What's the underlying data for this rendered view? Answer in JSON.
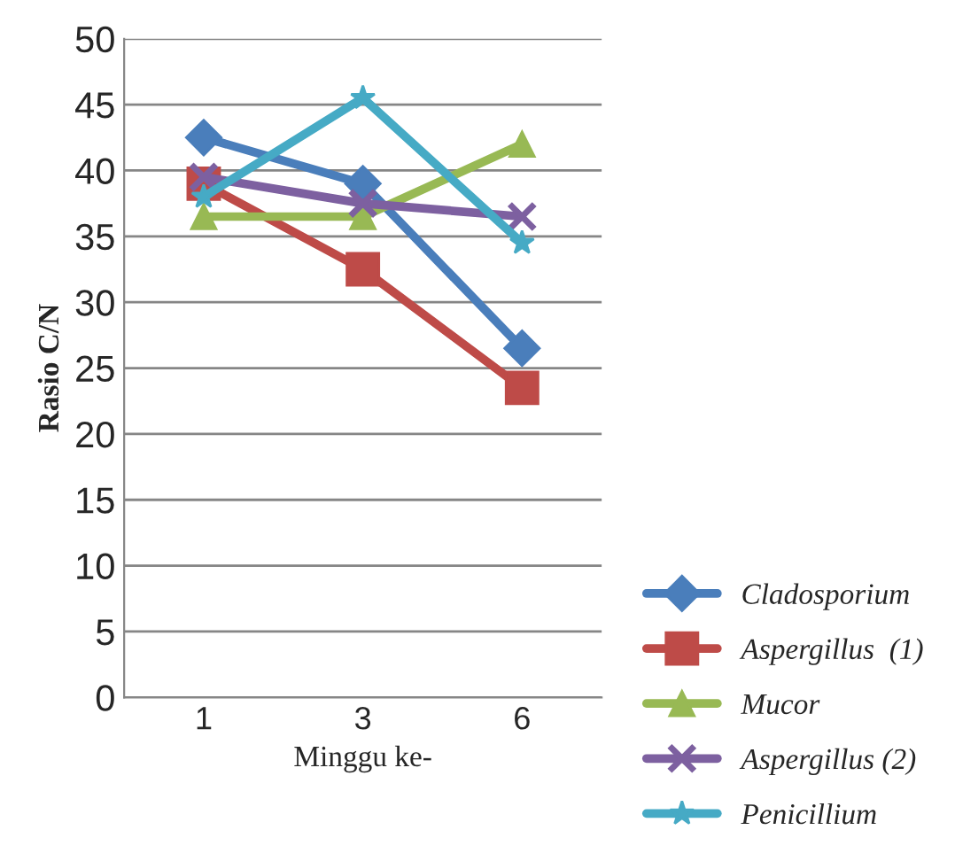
{
  "chart_data": {
    "type": "line",
    "xlabel": "Minggu ke-",
    "ylabel": "Rasio C/N",
    "categories": [
      "1",
      "3",
      "6"
    ],
    "ylim": [
      0,
      50
    ],
    "yticks": [
      0,
      5,
      10,
      15,
      20,
      25,
      30,
      35,
      40,
      45,
      50
    ],
    "grid": "y",
    "legend": "bottom right",
    "line_style": "solid",
    "series": [
      {
        "name": "Cladosporium",
        "color": "#4a7ebb",
        "marker": "diamond",
        "values": [
          42.5,
          39,
          26.5
        ]
      },
      {
        "name": "Aspergillus  (1)",
        "color": "#be4b48",
        "marker": "square",
        "values": [
          39,
          32.5,
          23.5
        ]
      },
      {
        "name": "Mucor",
        "color": "#98b954",
        "marker": "triangle",
        "values": [
          36.5,
          36.5,
          42
        ]
      },
      {
        "name": "Aspergillus (2)",
        "color": "#7d60a0",
        "marker": "cross",
        "values": [
          39.5,
          37.5,
          36.5
        ]
      },
      {
        "name": "Penicillium",
        "color": "#46aac5",
        "marker": "star",
        "values": [
          38,
          45.5,
          34.5
        ]
      }
    ]
  }
}
